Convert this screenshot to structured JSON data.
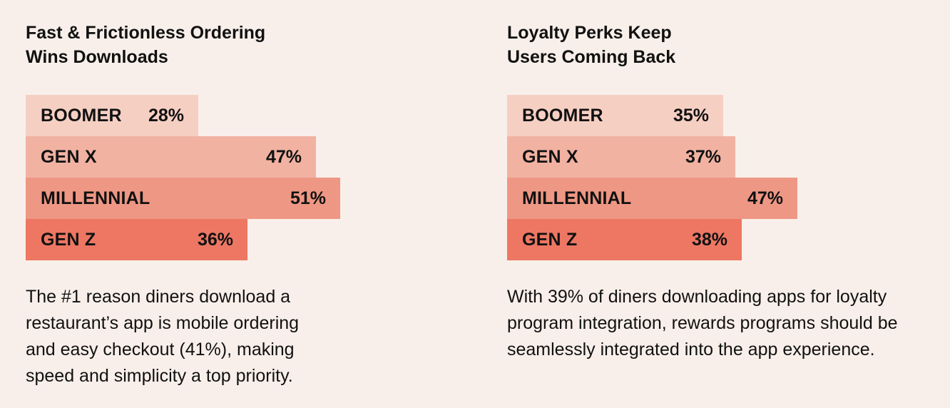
{
  "chart_data": [
    {
      "type": "bar",
      "orientation": "horizontal",
      "title_lines": [
        "Fast & Frictionless Ordering",
        "Wins Downloads"
      ],
      "categories": [
        "BOOMER",
        "GEN X",
        "MILLENNIAL",
        "GEN Z"
      ],
      "values": [
        28,
        47,
        51,
        36
      ],
      "value_labels": [
        "28%",
        "47%",
        "51%",
        "36%"
      ],
      "description_lines": [
        "The #1 reason diners download a",
        "restaurant’s app is mobile ordering",
        "and easy checkout (41%), making",
        "speed and simplicity a top priority."
      ],
      "xlim": [
        0,
        100
      ],
      "grid": false,
      "legend": "none"
    },
    {
      "type": "bar",
      "orientation": "horizontal",
      "title_lines": [
        "Loyalty Perks Keep",
        "Users Coming Back"
      ],
      "categories": [
        "BOOMER",
        "GEN X",
        "MILLENNIAL",
        "GEN Z"
      ],
      "values": [
        35,
        37,
        47,
        38
      ],
      "value_labels": [
        "35%",
        "37%",
        "47%",
        "38%"
      ],
      "description_lines": [
        "With 39% of diners downloading apps for loyalty",
        "program integration, rewards programs should be",
        "seamlessly integrated into the app experience."
      ],
      "xlim": [
        0,
        100
      ],
      "grid": false,
      "legend": "none"
    }
  ],
  "colors": {
    "background": "#f8efea",
    "text": "#111111",
    "bars": [
      "#f6cfc3",
      "#f1b2a2",
      "#ee9784",
      "#ed7763"
    ]
  }
}
